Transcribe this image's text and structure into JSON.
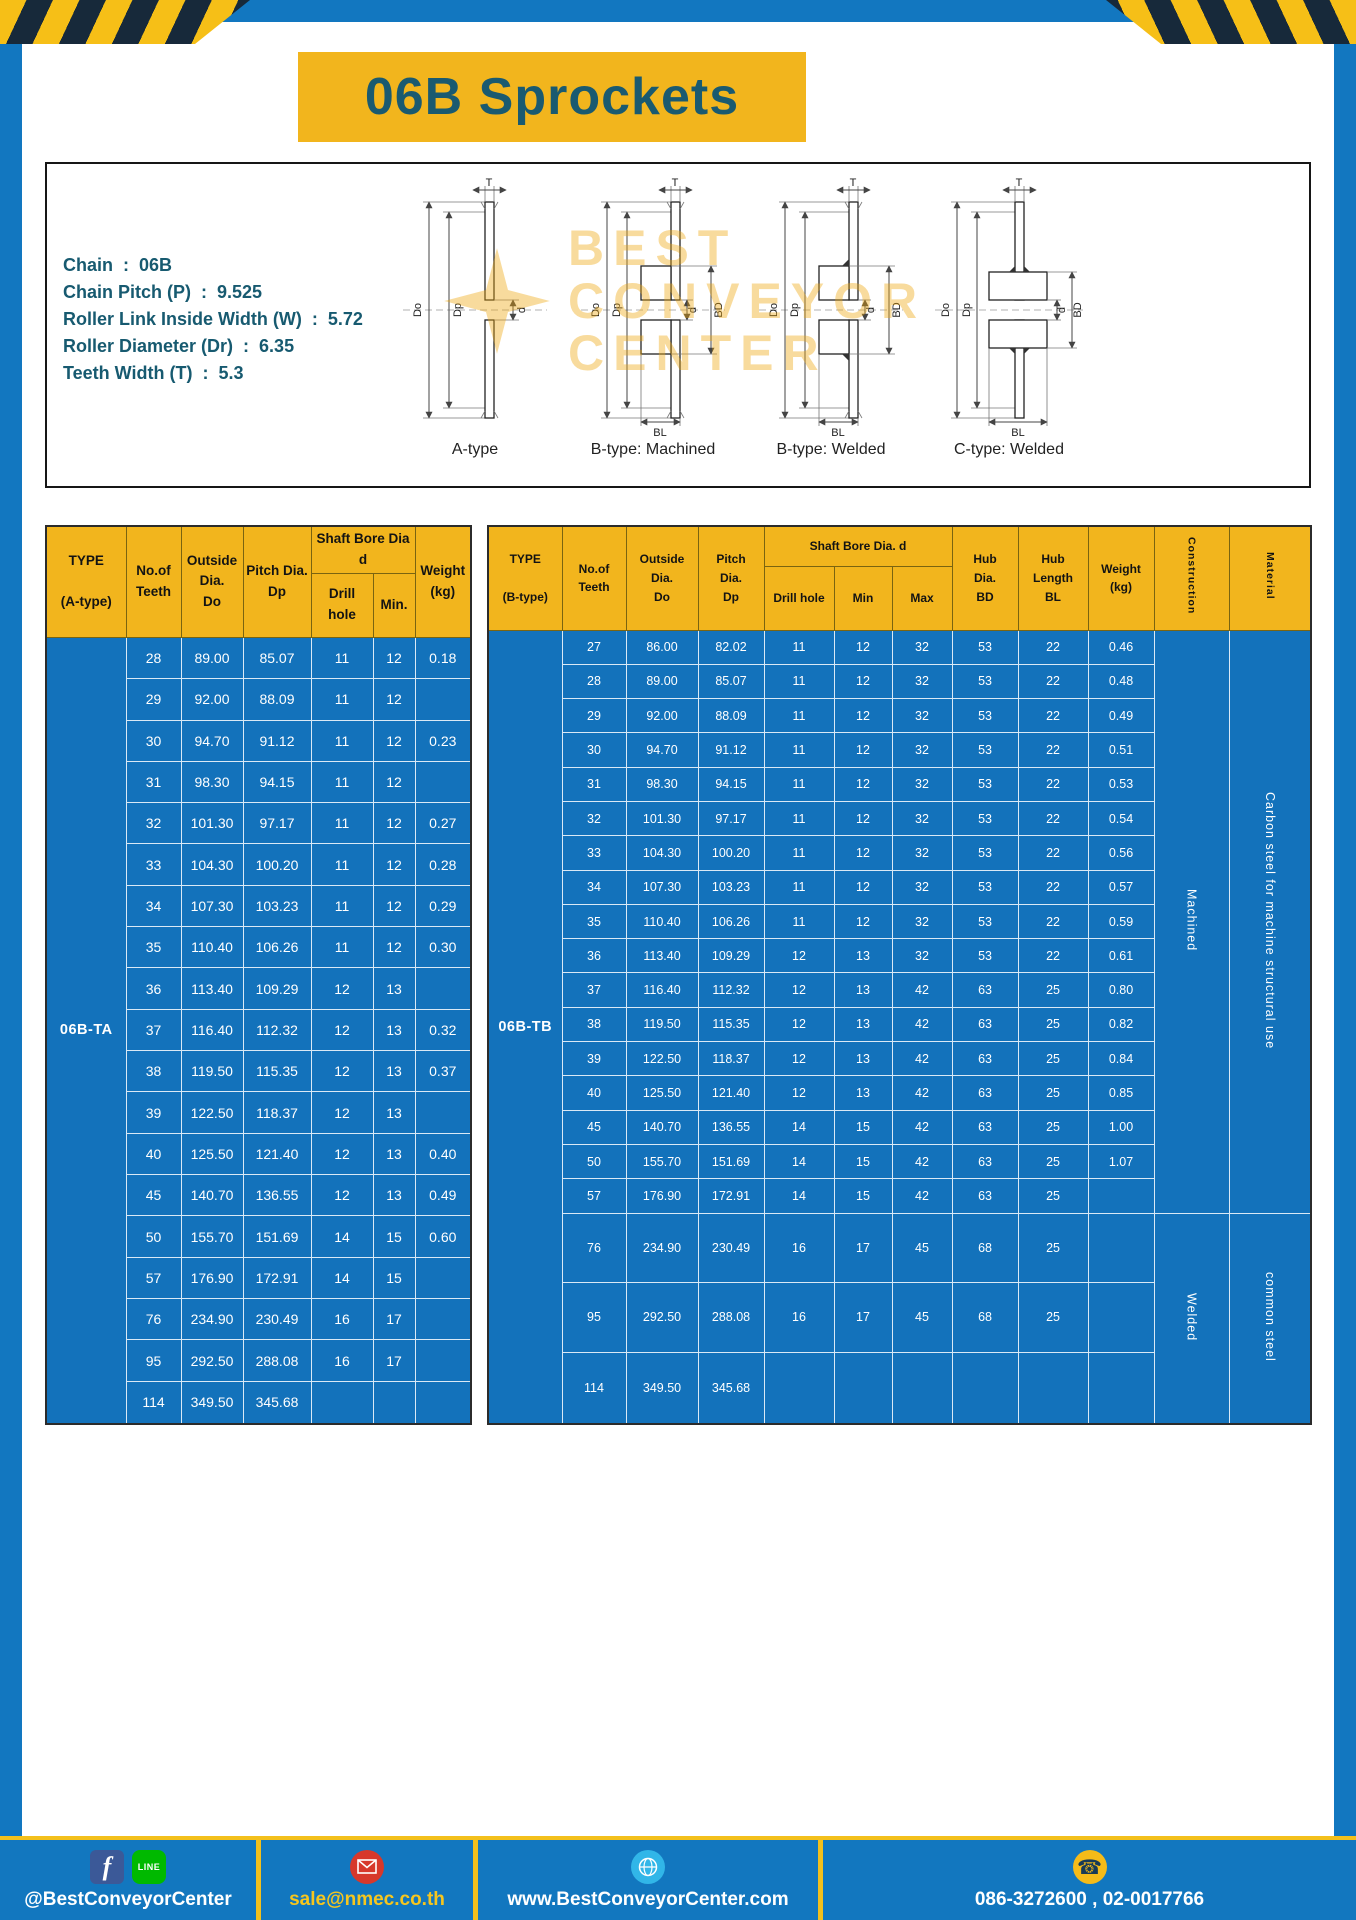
{
  "page": {
    "title": "06B Sprockets"
  },
  "colors": {
    "frame_blue": "#1277c0",
    "table_blue": "#1372bb",
    "accent_yellow": "#f2b51d",
    "title_text": "#1a5a70",
    "footer_blue": "#1277bf"
  },
  "specs": {
    "lines": [
      "Chain  :  06B",
      "Chain Pitch (P)  :  9.525",
      "Roller Link Inside Width (W)  :  5.72",
      "Roller Diameter (Dr)  :  6.35",
      "Teeth Width (T)  :  5.3"
    ]
  },
  "watermark": {
    "lines": [
      "BEST",
      "CONVEYOR",
      "CENTER"
    ]
  },
  "drawings": {
    "captions": [
      "A-type",
      "B-type: Machined",
      "B-type: Welded",
      "C-type: Welded"
    ],
    "dims": {
      "t": "T",
      "do_label": "Do",
      "dp_label": "Dp",
      "d": "d",
      "bd": "BD",
      "bl": "BL"
    }
  },
  "table_a": {
    "header": {
      "type": "TYPE\n\n(A-type)",
      "teeth": "No.of\nTeeth",
      "outside": "Outside\nDia.\nDo",
      "pitch": "Pitch Dia.\nDp",
      "shaft_group": "Shaft Bore Dia d",
      "drill": "Drill hole",
      "min": "Min.",
      "weight": "Weight\n(kg)"
    },
    "type_value": "06B-TA",
    "rows": [
      [
        "28",
        "89.00",
        "85.07",
        "11",
        "12",
        "0.18"
      ],
      [
        "29",
        "92.00",
        "88.09",
        "11",
        "12",
        ""
      ],
      [
        "30",
        "94.70",
        "91.12",
        "11",
        "12",
        "0.23"
      ],
      [
        "31",
        "98.30",
        "94.15",
        "11",
        "12",
        ""
      ],
      [
        "32",
        "101.30",
        "97.17",
        "11",
        "12",
        "0.27"
      ],
      [
        "33",
        "104.30",
        "100.20",
        "11",
        "12",
        "0.28"
      ],
      [
        "34",
        "107.30",
        "103.23",
        "11",
        "12",
        "0.29"
      ],
      [
        "35",
        "110.40",
        "106.26",
        "11",
        "12",
        "0.30"
      ],
      [
        "36",
        "113.40",
        "109.29",
        "12",
        "13",
        ""
      ],
      [
        "37",
        "116.40",
        "112.32",
        "12",
        "13",
        "0.32"
      ],
      [
        "38",
        "119.50",
        "115.35",
        "12",
        "13",
        "0.37"
      ],
      [
        "39",
        "122.50",
        "118.37",
        "12",
        "13",
        ""
      ],
      [
        "40",
        "125.50",
        "121.40",
        "12",
        "13",
        "0.40"
      ],
      [
        "45",
        "140.70",
        "136.55",
        "12",
        "13",
        "0.49"
      ],
      [
        "50",
        "155.70",
        "151.69",
        "14",
        "15",
        "0.60"
      ],
      [
        "57",
        "176.90",
        "172.91",
        "14",
        "15",
        ""
      ],
      [
        "76",
        "234.90",
        "230.49",
        "16",
        "17",
        ""
      ],
      [
        "95",
        "292.50",
        "288.08",
        "16",
        "17",
        ""
      ],
      [
        "114",
        "349.50",
        "345.68",
        "",
        "",
        ""
      ]
    ]
  },
  "table_b": {
    "header": {
      "type": "TYPE\n\n(B-type)",
      "teeth": "No.of\nTeeth",
      "outside": "Outside\nDia.\nDo",
      "pitch": "Pitch\nDia.\nDp",
      "shaft_group": "Shaft Bore Dia. d",
      "drill": "Drill hole",
      "min": "Min",
      "max": "Max",
      "hub_dia": "Hub\nDia.\nBD",
      "hub_len": "Hub\nLength\nBL",
      "weight": "Weight\n(kg)",
      "construction": "Construction",
      "material": "Material"
    },
    "type_value": "06B-TB",
    "rows": [
      [
        "27",
        "86.00",
        "82.02",
        "11",
        "12",
        "32",
        "53",
        "22",
        "0.46"
      ],
      [
        "28",
        "89.00",
        "85.07",
        "11",
        "12",
        "32",
        "53",
        "22",
        "0.48"
      ],
      [
        "29",
        "92.00",
        "88.09",
        "11",
        "12",
        "32",
        "53",
        "22",
        "0.49"
      ],
      [
        "30",
        "94.70",
        "91.12",
        "11",
        "12",
        "32",
        "53",
        "22",
        "0.51"
      ],
      [
        "31",
        "98.30",
        "94.15",
        "11",
        "12",
        "32",
        "53",
        "22",
        "0.53"
      ],
      [
        "32",
        "101.30",
        "97.17",
        "11",
        "12",
        "32",
        "53",
        "22",
        "0.54"
      ],
      [
        "33",
        "104.30",
        "100.20",
        "11",
        "12",
        "32",
        "53",
        "22",
        "0.56"
      ],
      [
        "34",
        "107.30",
        "103.23",
        "11",
        "12",
        "32",
        "53",
        "22",
        "0.57"
      ],
      [
        "35",
        "110.40",
        "106.26",
        "11",
        "12",
        "32",
        "53",
        "22",
        "0.59"
      ],
      [
        "36",
        "113.40",
        "109.29",
        "12",
        "13",
        "32",
        "53",
        "22",
        "0.61"
      ],
      [
        "37",
        "116.40",
        "112.32",
        "12",
        "13",
        "42",
        "63",
        "25",
        "0.80"
      ],
      [
        "38",
        "119.50",
        "115.35",
        "12",
        "13",
        "42",
        "63",
        "25",
        "0.82"
      ],
      [
        "39",
        "122.50",
        "118.37",
        "12",
        "13",
        "42",
        "63",
        "25",
        "0.84"
      ],
      [
        "40",
        "125.50",
        "121.40",
        "12",
        "13",
        "42",
        "63",
        "25",
        "0.85"
      ],
      [
        "45",
        "140.70",
        "136.55",
        "14",
        "15",
        "42",
        "63",
        "25",
        "1.00"
      ],
      [
        "50",
        "155.70",
        "151.69",
        "14",
        "15",
        "42",
        "63",
        "25",
        "1.07"
      ],
      [
        "57",
        "176.90",
        "172.91",
        "14",
        "15",
        "42",
        "63",
        "25",
        ""
      ],
      [
        "76",
        "234.90",
        "230.49",
        "16",
        "17",
        "45",
        "68",
        "25",
        ""
      ],
      [
        "95",
        "292.50",
        "288.08",
        "16",
        "17",
        "45",
        "68",
        "25",
        ""
      ],
      [
        "114",
        "349.50",
        "345.68",
        "",
        "",
        "",
        "",
        "",
        ""
      ]
    ],
    "construction_cells": [
      {
        "label": "Machined",
        "span": 17
      },
      {
        "label": "Welded",
        "span": 3
      }
    ],
    "material_cells": [
      {
        "label": "Carbon steel for machine structural use",
        "span": 17
      },
      {
        "label": "common steel",
        "span": 3
      }
    ]
  },
  "footer": {
    "facebook_letter": "f",
    "line_text": "LINE",
    "sections": [
      {
        "label": "@BestConveyorCenter"
      },
      {
        "label": "sale@nmec.co.th"
      },
      {
        "label": "www.BestConveyorCenter.com"
      },
      {
        "label": "086-3272600 , 02-0017766"
      }
    ]
  }
}
